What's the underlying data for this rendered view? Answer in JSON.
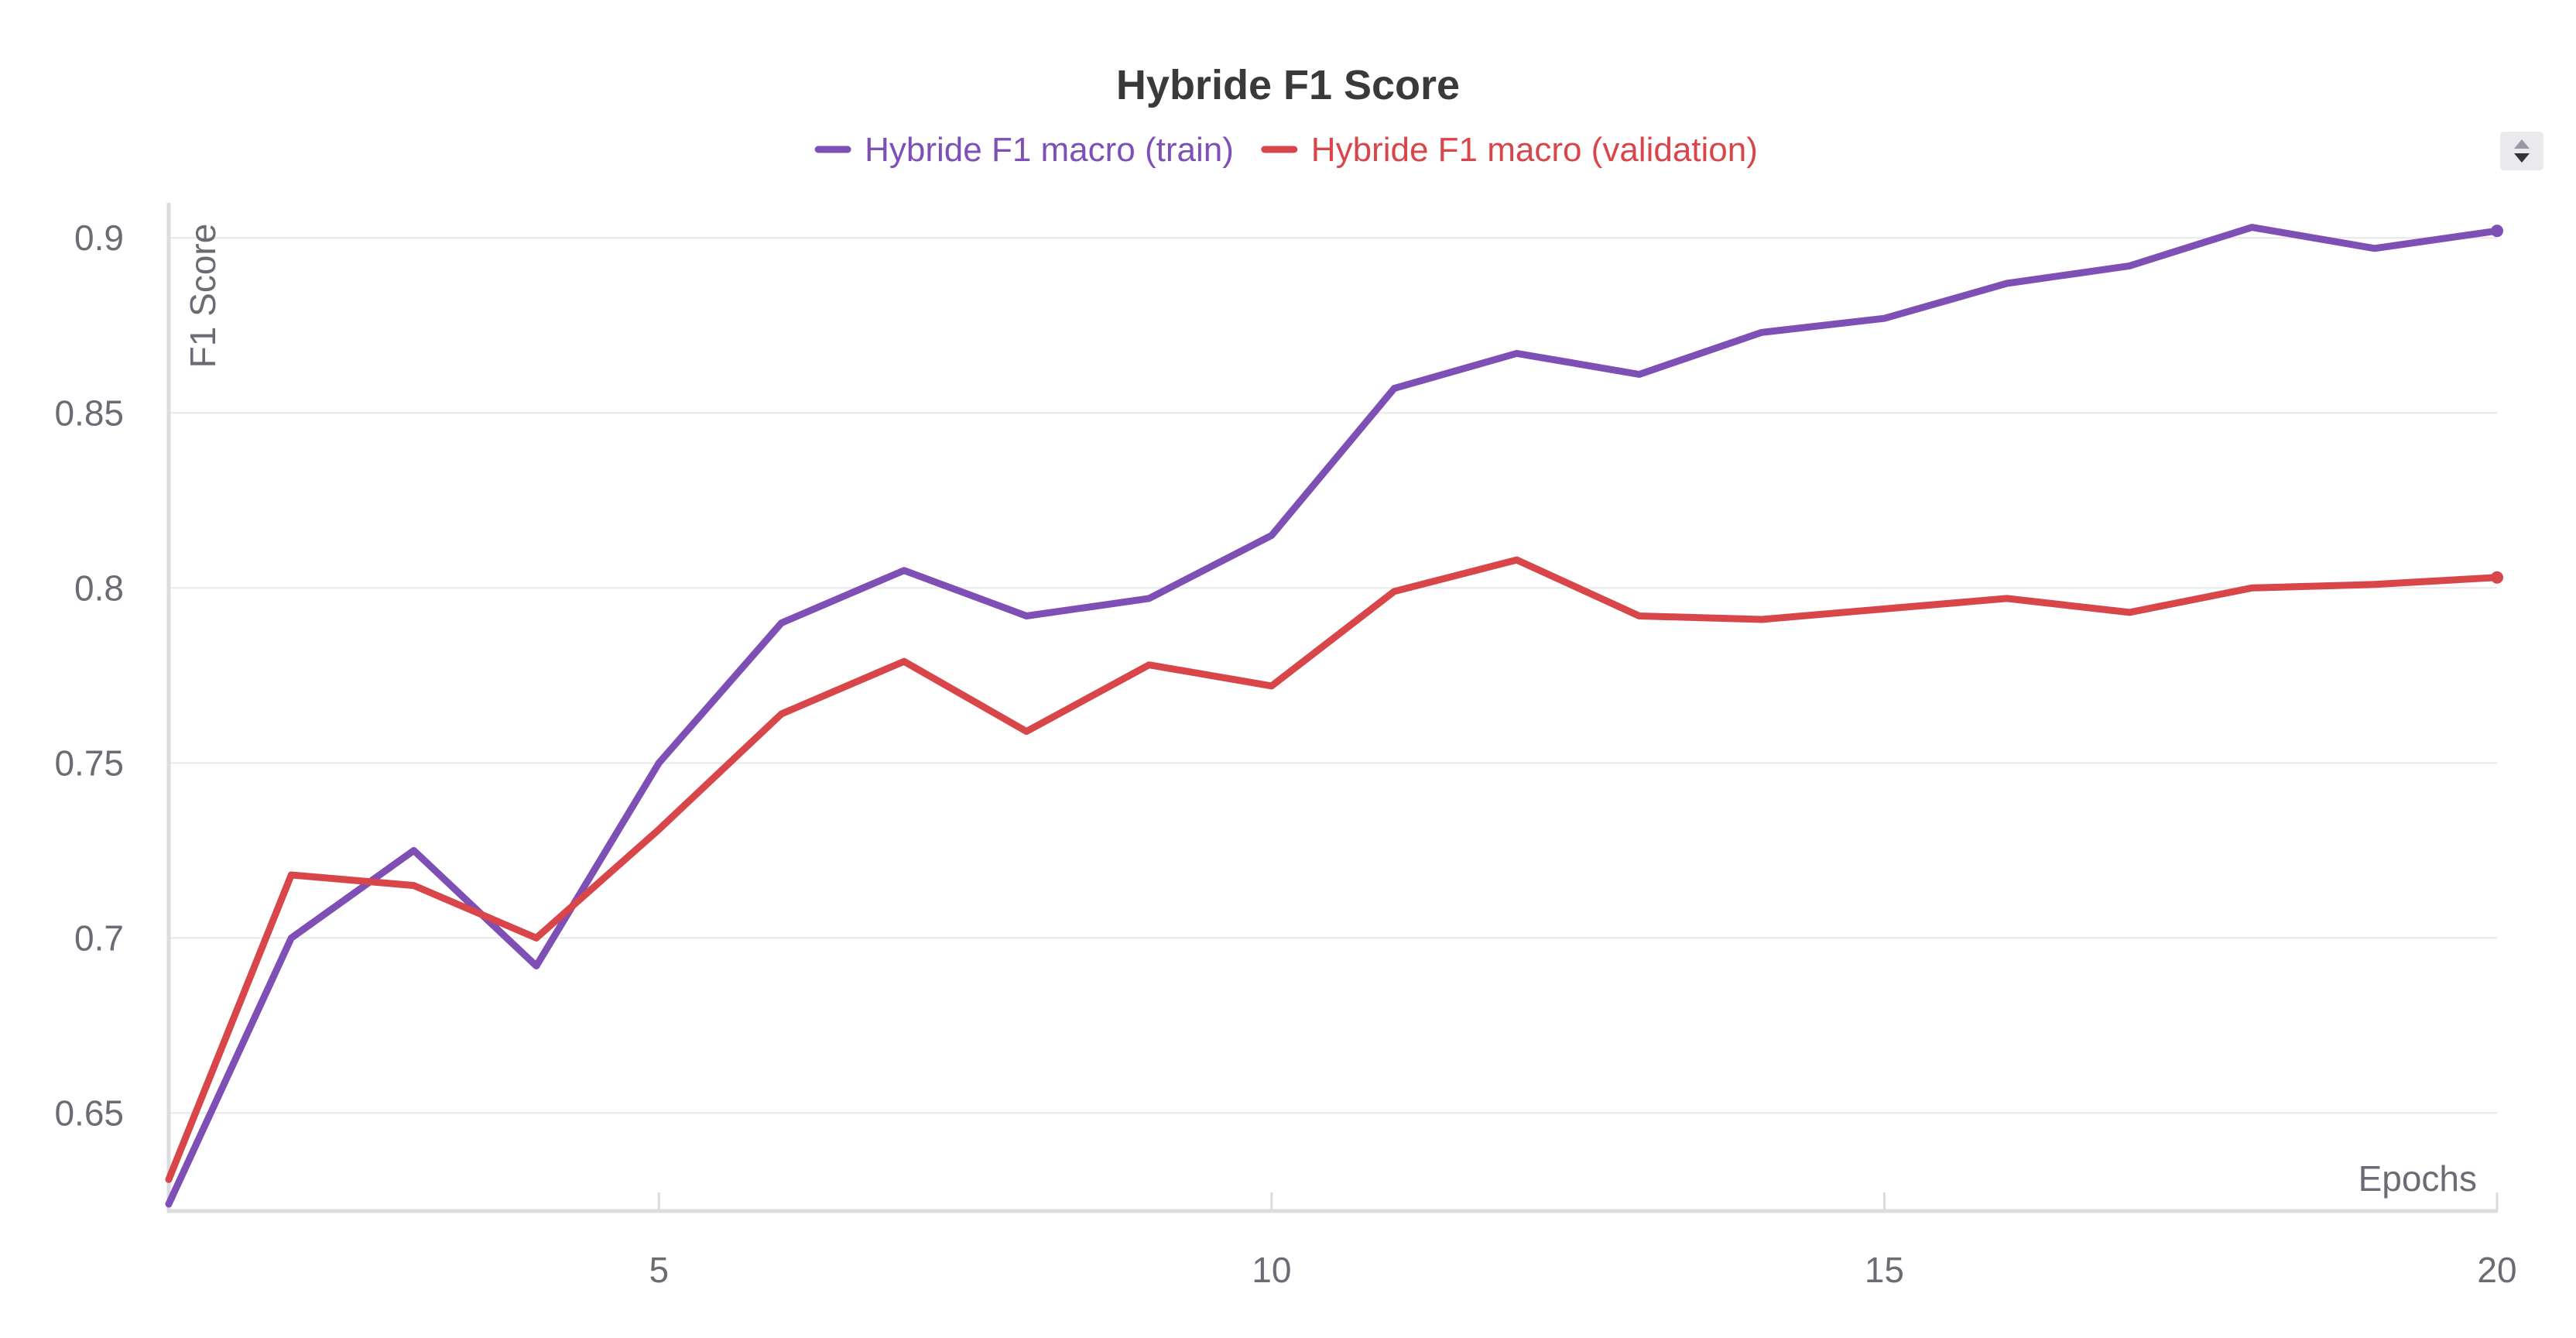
{
  "chart_data": {
    "type": "line",
    "title": "Hybride F1 Score",
    "xlabel": "Epochs",
    "ylabel": "F1 Score",
    "xlim": [
      1,
      20
    ],
    "ylim": [
      0.622,
      0.91
    ],
    "x_ticks": [
      5,
      10,
      15,
      20
    ],
    "y_ticks": [
      0.65,
      0.7,
      0.75,
      0.8,
      0.85,
      0.9
    ],
    "grid": true,
    "legend_position": "top-center",
    "x": [
      1,
      2,
      3,
      4,
      5,
      6,
      7,
      8,
      9,
      10,
      11,
      12,
      13,
      14,
      15,
      16,
      17,
      18,
      19,
      20
    ],
    "series": [
      {
        "name": "Hybride F1 macro (train)",
        "color": "#7e4fb5",
        "values": [
          0.624,
          0.7,
          0.725,
          0.692,
          0.75,
          0.79,
          0.805,
          0.792,
          0.797,
          0.815,
          0.857,
          0.867,
          0.861,
          0.873,
          0.877,
          0.887,
          0.892,
          0.903,
          0.897,
          0.902
        ]
      },
      {
        "name": "Hybride F1 macro (validation)",
        "color": "#d9464a",
        "values": [
          0.631,
          0.718,
          0.715,
          0.7,
          0.731,
          0.764,
          0.779,
          0.759,
          0.778,
          0.772,
          0.799,
          0.808,
          0.792,
          0.791,
          0.794,
          0.797,
          0.793,
          0.8,
          0.801,
          0.803
        ]
      }
    ]
  }
}
